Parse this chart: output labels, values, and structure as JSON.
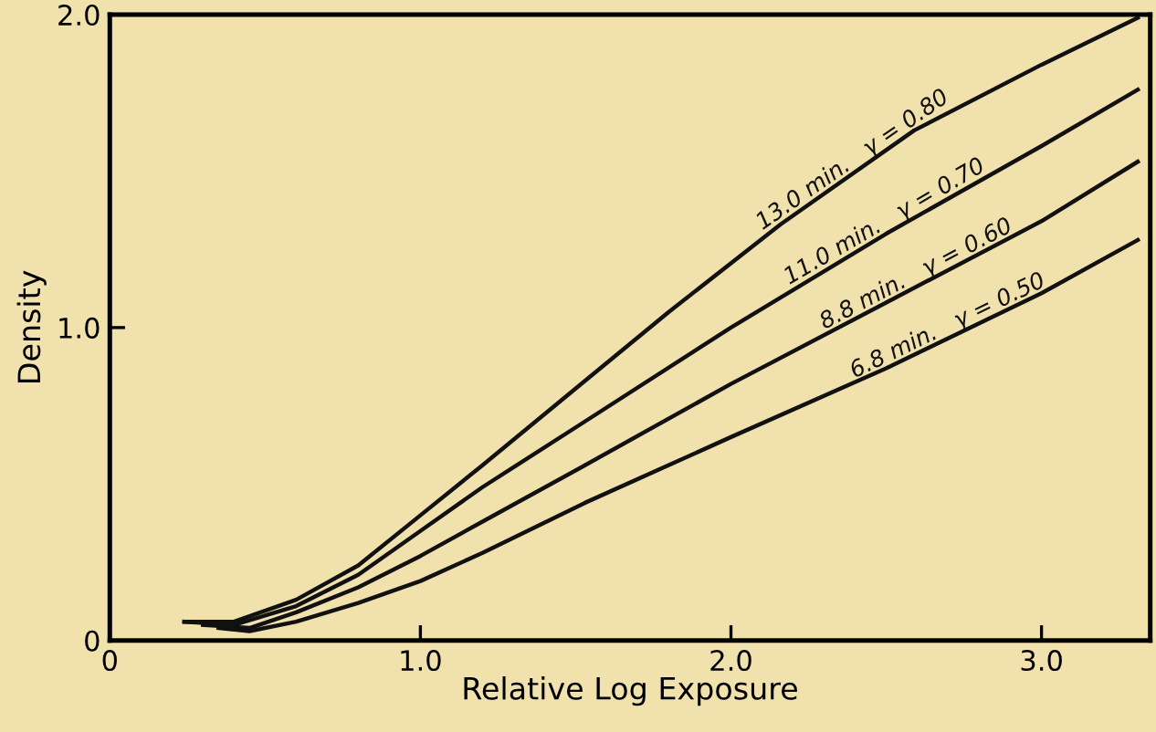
{
  "chart_data": {
    "type": "line",
    "xlabel": "Relative Log Exposure",
    "ylabel": "Density",
    "xlim": [
      0,
      3.35
    ],
    "ylim": [
      0,
      2.0
    ],
    "xticks": [
      {
        "value": 0,
        "label": "0"
      },
      {
        "value": 1.0,
        "label": "1.0"
      },
      {
        "value": 2.0,
        "label": "2.0"
      },
      {
        "value": 3.0,
        "label": "3.0"
      }
    ],
    "yticks": [
      {
        "value": 0,
        "label": "0"
      },
      {
        "value": 1.0,
        "label": "1.0"
      },
      {
        "value": 2.0,
        "label": "2.0"
      }
    ],
    "grid": false,
    "marker": "none",
    "line_style": "solid",
    "series": [
      {
        "color": "#111111",
        "x": [
          0.24,
          0.4,
          0.6,
          0.8,
          1.0,
          1.2,
          1.53,
          1.8,
          2.16,
          2.59,
          3.0,
          3.31
        ],
        "values": [
          0.06,
          0.06,
          0.13,
          0.24,
          0.4,
          0.56,
          0.83,
          1.05,
          1.33,
          1.63,
          1.84,
          1.99
        ]
      },
      {
        "color": "#111111",
        "x": [
          0.24,
          0.4,
          0.6,
          0.8,
          1.0,
          1.2,
          1.53,
          2.0,
          2.5,
          3.0,
          3.31
        ],
        "values": [
          0.06,
          0.05,
          0.11,
          0.21,
          0.35,
          0.49,
          0.7,
          1.0,
          1.3,
          1.58,
          1.76
        ]
      },
      {
        "color": "#111111",
        "x": [
          0.3,
          0.45,
          0.6,
          0.8,
          1.0,
          1.2,
          1.53,
          2.0,
          2.5,
          3.0,
          3.31
        ],
        "values": [
          0.05,
          0.04,
          0.09,
          0.17,
          0.27,
          0.38,
          0.56,
          0.82,
          1.08,
          1.34,
          1.53
        ]
      },
      {
        "color": "#111111",
        "x": [
          0.35,
          0.45,
          0.6,
          0.8,
          1.0,
          1.2,
          1.53,
          2.0,
          2.5,
          3.0,
          3.31
        ],
        "values": [
          0.04,
          0.03,
          0.06,
          0.12,
          0.19,
          0.28,
          0.44,
          0.65,
          0.87,
          1.11,
          1.28
        ]
      }
    ],
    "annotations": [
      "13.0 min.   γ = 0.80",
      "11.0 min.   γ = 0.70",
      "8.8 min.   γ = 0.60",
      "6.8 min.   γ = 0.50"
    ]
  }
}
